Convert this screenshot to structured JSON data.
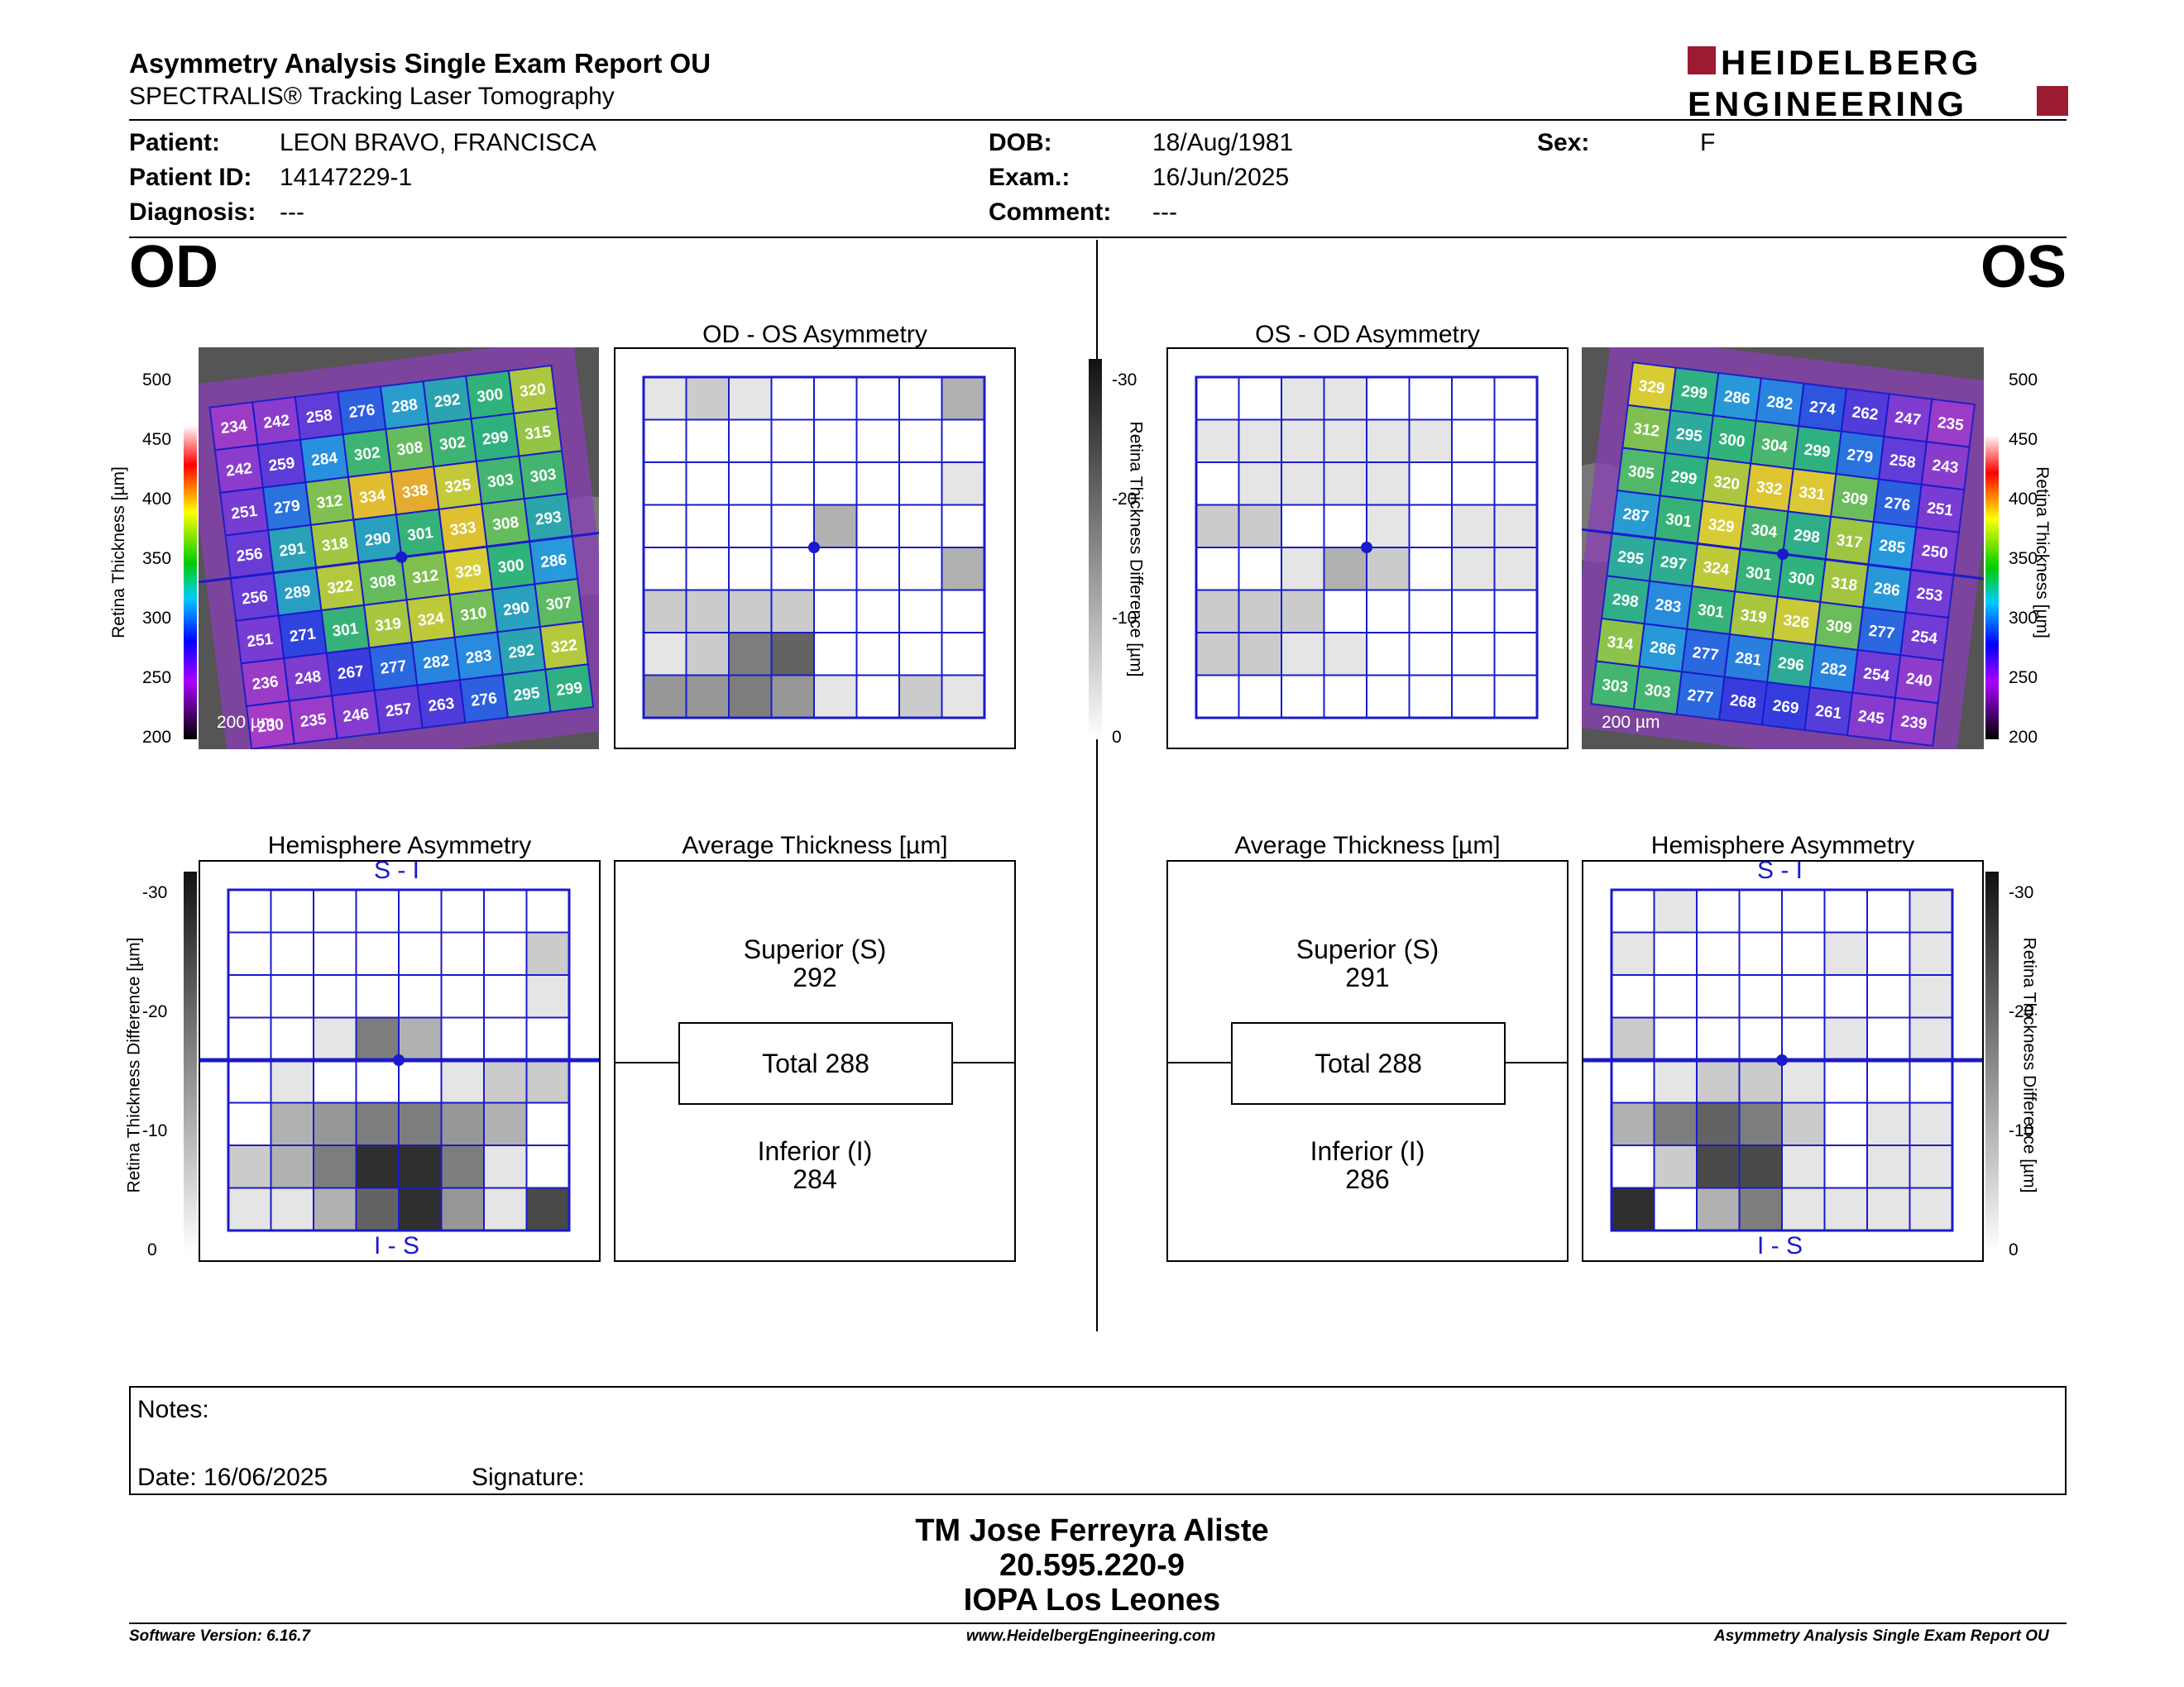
{
  "header": {
    "title": "Asymmetry Analysis Single Exam Report OU",
    "subtitle": "SPECTRALIS® Tracking Laser Tomography",
    "logo_line1": "HEIDELBERG",
    "logo_line2": "ENGINEERING"
  },
  "patient": {
    "patient_label": "Patient:",
    "patient_value": "LEON BRAVO, FRANCISCA",
    "id_label": "Patient ID:",
    "id_value": "14147229-1",
    "diag_label": "Diagnosis:",
    "diag_value": "---",
    "dob_label": "DOB:",
    "dob_value": "18/Aug/1981",
    "exam_label": "Exam.:",
    "exam_value": "16/Jun/2025",
    "comment_label": "Comment:",
    "comment_value": "---",
    "sex_label": "Sex:",
    "sex_value": "F"
  },
  "od": {
    "eye_label": "OD",
    "asym_title": "OD - OS Asymmetry",
    "hemi_title": "Hemisphere Asymmetry",
    "avg_title": "Average Thickness [µm]",
    "superior_label": "Superior (S)",
    "superior_value": "292",
    "total_label": "Total 288",
    "inferior_label": "Inferior (I)",
    "inferior_value": "284",
    "scale": "200 µm",
    "thickness": [
      [
        234,
        242,
        258,
        276,
        288,
        292,
        300,
        320
      ],
      [
        242,
        259,
        284,
        302,
        308,
        302,
        299,
        315
      ],
      [
        251,
        279,
        312,
        334,
        338,
        325,
        303,
        303
      ],
      [
        256,
        291,
        318,
        290,
        301,
        333,
        308,
        293
      ],
      [
        256,
        289,
        322,
        308,
        312,
        329,
        300,
        286
      ],
      [
        251,
        271,
        301,
        319,
        324,
        310,
        290,
        307
      ],
      [
        236,
        248,
        267,
        277,
        282,
        283,
        292,
        322
      ],
      [
        230,
        235,
        246,
        257,
        263,
        276,
        295,
        299
      ]
    ],
    "asym_grid": [
      [
        1,
        2,
        1,
        0,
        0,
        0,
        0,
        3
      ],
      [
        0,
        0,
        0,
        0,
        0,
        0,
        0,
        0
      ],
      [
        0,
        0,
        0,
        0,
        0,
        0,
        0,
        1
      ],
      [
        0,
        0,
        0,
        0,
        3,
        0,
        0,
        0
      ],
      [
        0,
        0,
        0,
        0,
        0,
        0,
        0,
        3
      ],
      [
        2,
        2,
        2,
        2,
        0,
        0,
        0,
        0
      ],
      [
        1,
        2,
        5,
        6,
        0,
        0,
        0,
        0
      ],
      [
        4,
        4,
        5,
        4,
        1,
        0,
        2,
        1
      ]
    ],
    "hemi_grid": [
      [
        0,
        0,
        0,
        0,
        0,
        0,
        0,
        0
      ],
      [
        0,
        0,
        0,
        0,
        0,
        0,
        0,
        2
      ],
      [
        0,
        0,
        0,
        0,
        0,
        0,
        0,
        1
      ],
      [
        0,
        0,
        1,
        5,
        3,
        0,
        0,
        0
      ],
      [
        0,
        1,
        0,
        0,
        0,
        1,
        2,
        2
      ],
      [
        0,
        3,
        4,
        5,
        5,
        4,
        3,
        0
      ],
      [
        2,
        3,
        5,
        8,
        8,
        5,
        1,
        0
      ],
      [
        1,
        1,
        3,
        6,
        8,
        4,
        1,
        7
      ]
    ]
  },
  "os": {
    "eye_label": "OS",
    "asym_title": "OS - OD Asymmetry",
    "hemi_title": "Hemisphere Asymmetry",
    "avg_title": "Average Thickness [µm]",
    "superior_label": "Superior (S)",
    "superior_value": "291",
    "total_label": "Total 288",
    "inferior_label": "Inferior (I)",
    "inferior_value": "286",
    "scale": "200 µm",
    "thickness": [
      [
        329,
        299,
        286,
        282,
        274,
        262,
        247,
        235
      ],
      [
        312,
        295,
        300,
        304,
        299,
        279,
        258,
        243
      ],
      [
        305,
        299,
        320,
        332,
        331,
        309,
        276,
        251
      ],
      [
        287,
        301,
        329,
        304,
        298,
        317,
        285,
        250
      ],
      [
        295,
        297,
        324,
        301,
        300,
        318,
        286,
        253
      ],
      [
        298,
        283,
        301,
        319,
        326,
        309,
        277,
        254
      ],
      [
        314,
        286,
        277,
        281,
        296,
        282,
        254,
        240
      ],
      [
        303,
        303,
        277,
        268,
        269,
        261,
        245,
        239
      ]
    ],
    "asym_grid": [
      [
        0,
        0,
        1,
        1,
        0,
        0,
        0,
        0
      ],
      [
        1,
        1,
        1,
        1,
        1,
        1,
        0,
        0
      ],
      [
        0,
        1,
        1,
        1,
        1,
        0,
        0,
        0
      ],
      [
        2,
        2,
        0,
        0,
        1,
        0,
        1,
        1
      ],
      [
        0,
        0,
        1,
        3,
        2,
        0,
        1,
        1
      ],
      [
        2,
        2,
        2,
        0,
        0,
        0,
        0,
        0
      ],
      [
        2,
        2,
        1,
        1,
        0,
        0,
        0,
        0
      ],
      [
        0,
        0,
        0,
        0,
        0,
        0,
        0,
        0
      ]
    ],
    "hemi_grid": [
      [
        0,
        1,
        0,
        0,
        0,
        0,
        0,
        1
      ],
      [
        1,
        0,
        0,
        0,
        0,
        1,
        0,
        1
      ],
      [
        0,
        0,
        0,
        0,
        0,
        0,
        0,
        1
      ],
      [
        2,
        0,
        0,
        0,
        0,
        1,
        0,
        1
      ],
      [
        0,
        1,
        2,
        2,
        1,
        0,
        0,
        0
      ],
      [
        3,
        5,
        6,
        5,
        2,
        0,
        1,
        1
      ],
      [
        0,
        2,
        7,
        7,
        1,
        0,
        1,
        1
      ],
      [
        8,
        0,
        3,
        5,
        1,
        1,
        1,
        1
      ]
    ]
  },
  "axes": {
    "thickness_label": "Retina Thickness [µm]",
    "thickness_ticks": [
      "500",
      "450",
      "400",
      "350",
      "300",
      "250",
      "200"
    ],
    "diff_label": "Retina Thickness Difference [µm]",
    "diff_ticks": [
      "-30",
      "-20",
      "-10",
      "0"
    ],
    "hemi_top": "S - I",
    "hemi_bottom": "I - S"
  },
  "notes": {
    "notes_label": "Notes:",
    "date_label": "Date: 16/06/2025",
    "signature_label": "Signature:"
  },
  "signature": {
    "name": "TM Jose Ferreyra Aliste",
    "id": "20.595.220-9",
    "clinic": "IOPA Los Leones"
  },
  "footer": {
    "software": "Software Version: 6.16.7",
    "website": "www.HeidelbergEngineering.com",
    "report": "Asymmetry Analysis Single Exam Report OU"
  },
  "colors": {
    "grid_blue": "#1a1acc",
    "logo_red": "#9b1b30"
  }
}
